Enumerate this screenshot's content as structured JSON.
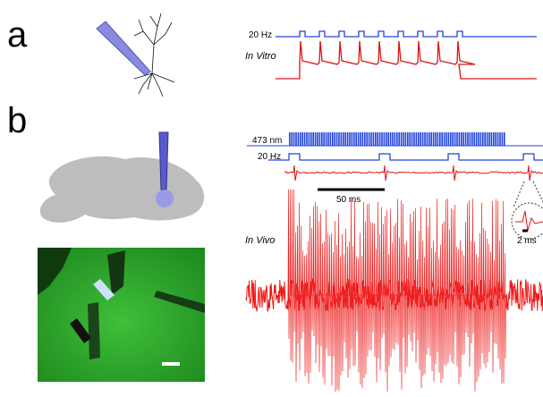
{
  "panel_a": {
    "label": "a",
    "stimulus_label": "20 Hz",
    "trace_label": "In Vitro"
  },
  "panel_b": {
    "label": "b",
    "light_label": "473 nm",
    "stimulus_label": "20 Hz",
    "scale_bar_label": "50 ms",
    "inset_scale_label": "2 ms",
    "trace_label": "In Vivo"
  }
}
